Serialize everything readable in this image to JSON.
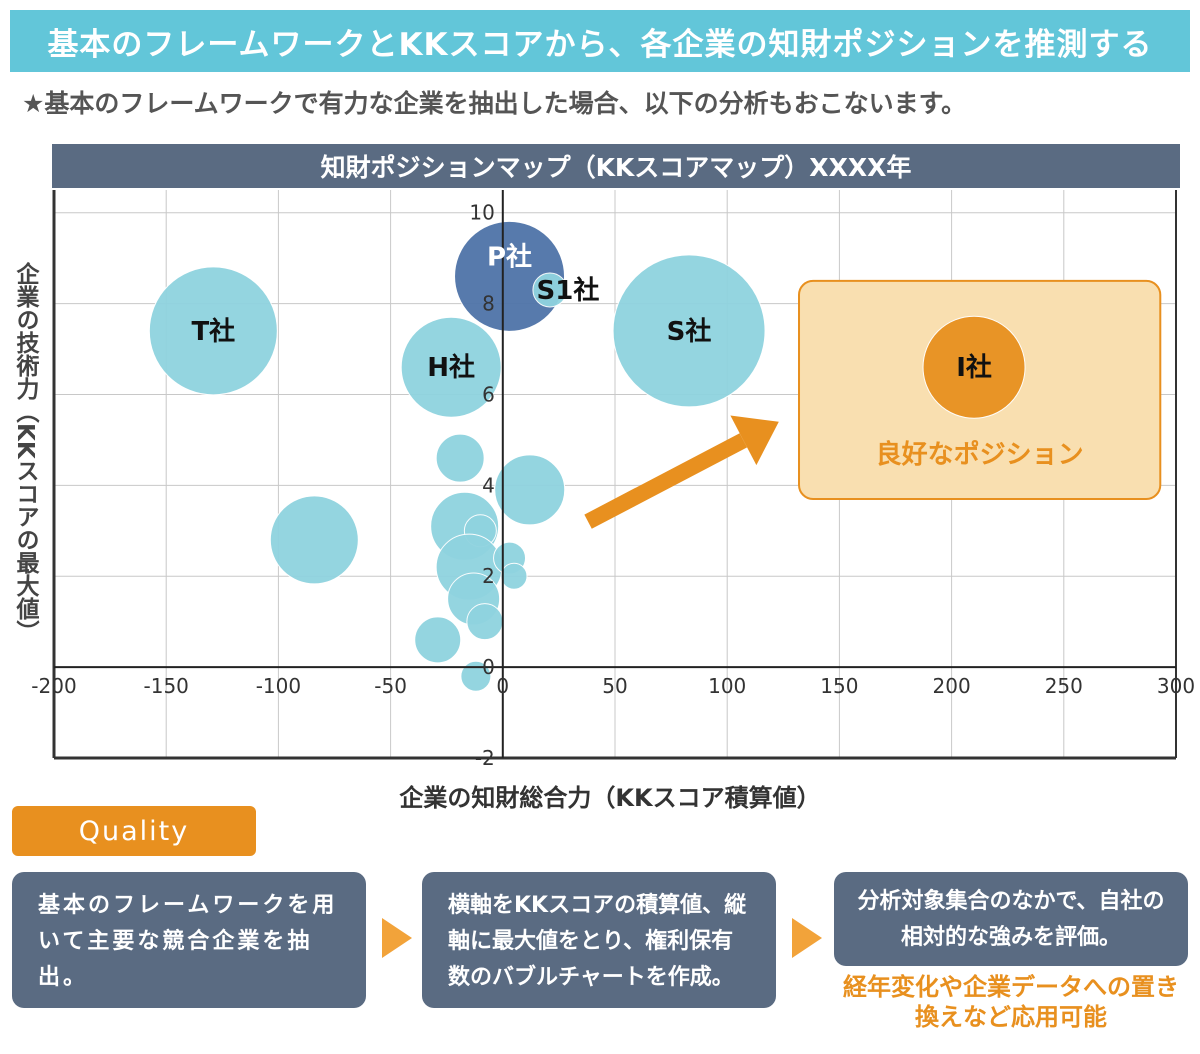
{
  "header": {
    "title": "基本のフレームワークとKKスコアから、各企業の知財ポジションを推測する",
    "subtitle": "★基本のフレームワークで有力な企業を抽出した場合、以下の分析もおこないます。"
  },
  "chart_data": {
    "type": "bubble",
    "title": "知財ポジションマップ（KKスコアマップ）XXXX年",
    "xlabel": "企業の知財総合力（KKスコア積算値）",
    "ylabel": "企業の技術力（KKスコアの最大値）",
    "xlim": [
      -200,
      300
    ],
    "ylim": [
      -2,
      10.5
    ],
    "x_ticks": [
      -200,
      -150,
      -100,
      -50,
      0,
      50,
      100,
      150,
      200,
      250,
      300
    ],
    "y_ticks": [
      -2,
      0,
      2,
      4,
      6,
      8,
      10
    ],
    "grid": true,
    "points": [
      {
        "label": "T社",
        "x": -129,
        "y": 7.4,
        "size": 64,
        "color": "#8fd3df"
      },
      {
        "label": "",
        "x": -84,
        "y": 2.8,
        "size": 44,
        "color": "#8fd3df"
      },
      {
        "label": "H社",
        "x": -23,
        "y": 6.6,
        "size": 50,
        "color": "#8fd3df"
      },
      {
        "label": "P社",
        "x": 3,
        "y": 8.6,
        "size": 55,
        "color": "#4f73a8"
      },
      {
        "label": "S1社",
        "x": 21,
        "y": 8.3,
        "size": 17,
        "color": "#8fd3df"
      },
      {
        "label": "S社",
        "x": 83,
        "y": 7.4,
        "size": 76,
        "color": "#8fd3df"
      },
      {
        "label": "I社",
        "x": 210,
        "y": 6.6,
        "size": 51,
        "color": "#e8901f"
      },
      {
        "label": "",
        "x": -19,
        "y": 4.6,
        "size": 24,
        "color": "#8fd3df"
      },
      {
        "label": "",
        "x": 12,
        "y": 3.9,
        "size": 35,
        "color": "#8fd3df"
      },
      {
        "label": "",
        "x": -17,
        "y": 3.1,
        "size": 34,
        "color": "#8fd3df"
      },
      {
        "label": "",
        "x": -10,
        "y": 3.0,
        "size": 16,
        "color": "#8fd3df"
      },
      {
        "label": "",
        "x": -15,
        "y": 2.2,
        "size": 33,
        "color": "#8fd3df"
      },
      {
        "label": "",
        "x": 3,
        "y": 2.4,
        "size": 16,
        "color": "#8fd3df"
      },
      {
        "label": "",
        "x": 5,
        "y": 2.0,
        "size": 13,
        "color": "#8fd3df"
      },
      {
        "label": "",
        "x": -13,
        "y": 1.5,
        "size": 26,
        "color": "#8fd3df"
      },
      {
        "label": "",
        "x": -8,
        "y": 1.0,
        "size": 18,
        "color": "#8fd3df"
      },
      {
        "label": "",
        "x": -29,
        "y": 0.6,
        "size": 23,
        "color": "#8fd3df"
      },
      {
        "label": "",
        "x": -12,
        "y": -0.2,
        "size": 15,
        "color": "#8fd3df"
      }
    ],
    "annotation": {
      "label": "良好なポジション",
      "region": {
        "x": [
          132,
          293
        ],
        "y": [
          3.7,
          8.5
        ]
      },
      "arrow_from": {
        "x": 38,
        "y": 3.2
      },
      "arrow_to": {
        "x": 123,
        "y": 5.4
      }
    }
  },
  "quality_tag": "Quality",
  "steps": [
    "基本のフレームワークを用いて主要な競合企業を抽出。",
    "横軸をKKスコアの積算値、縦軸に最大値をとり、権利保有数のバブルチャートを作成。",
    "分析対象集合のなかで、自社の相対的な強みを評価。"
  ],
  "note": "経年変化や企業データへの置き換えなど応用可能",
  "colors": {
    "header": "#62c6d9",
    "panel": "#5a6b82",
    "accent": "#e8901f",
    "bubble": "#8fd3df",
    "bubble_dark": "#4f73a8"
  }
}
